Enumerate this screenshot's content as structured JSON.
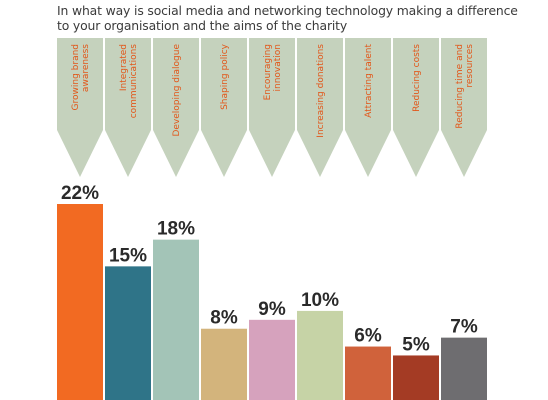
{
  "chart_data": {
    "type": "bar",
    "title": "In what way is social media and networking technology making a difference\nto your organisation and the aims of the charity",
    "categories": [
      "Growing brand awareness",
      "Integrated communications",
      "Developing dialogue",
      "Shaping policy",
      "Encouraging innovation",
      "Increasing donations",
      "Attracting talent",
      "Reducing costs",
      "Reducing time and resources"
    ],
    "category_lines": [
      [
        "Growing brand",
        "awareness"
      ],
      [
        "Integrated",
        "communications"
      ],
      [
        "Developing dialogue"
      ],
      [
        "Shaping policy"
      ],
      [
        "Encouraging",
        "innovation"
      ],
      [
        "Increasing donations"
      ],
      [
        "Attracting talent"
      ],
      [
        "Reducing costs"
      ],
      [
        "Reducing time and",
        "resources"
      ]
    ],
    "values": [
      22,
      15,
      18,
      8,
      9,
      10,
      6,
      5,
      7
    ],
    "value_labels": [
      "22%",
      "15%",
      "18%",
      "8%",
      "9%",
      "10%",
      "6%",
      "5%",
      "7%"
    ],
    "bar_colors": [
      "#f26a22",
      "#2f7488",
      "#a3c4b7",
      "#d3b47c",
      "#d6a2bd",
      "#c6d3a6",
      "#d0623b",
      "#a43b24",
      "#6e6d70"
    ],
    "arrow_color": "#c5d2bd",
    "label_color": "#e2571a",
    "ylim": [
      0,
      22
    ],
    "grid": false,
    "legend": "none"
  }
}
